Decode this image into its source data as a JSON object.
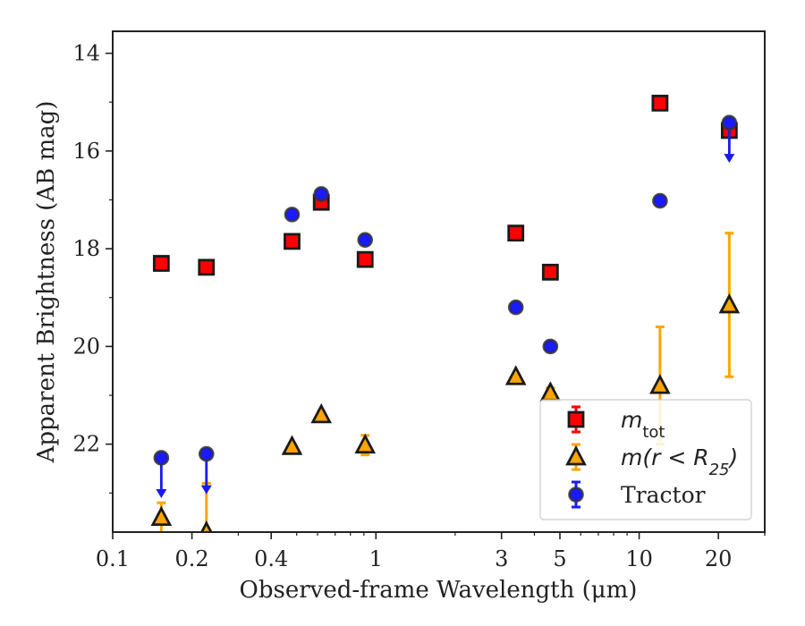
{
  "chart_data": {
    "type": "scatter",
    "title": "",
    "xlabel": "Observed-frame Wavelength (μm)",
    "ylabel": "Apparent Brightness (AB mag)",
    "x_scale": "log",
    "xlim": [
      0.1,
      30
    ],
    "ylim": [
      23.8,
      13.55
    ],
    "y_inverted": true,
    "x_ticks": [
      {
        "value": 0.1,
        "label": "0.1"
      },
      {
        "value": 0.2,
        "label": "0.2"
      },
      {
        "value": 0.4,
        "label": "0.4"
      },
      {
        "value": 1,
        "label": "1"
      },
      {
        "value": 3,
        "label": "3"
      },
      {
        "value": 5,
        "label": "5"
      },
      {
        "value": 10,
        "label": "10"
      },
      {
        "value": 20,
        "label": "20"
      }
    ],
    "y_ticks": [
      {
        "value": 14,
        "label": "14"
      },
      {
        "value": 16,
        "label": "16"
      },
      {
        "value": 18,
        "label": "18"
      },
      {
        "value": 20,
        "label": "20"
      },
      {
        "value": 22,
        "label": "22"
      }
    ],
    "grid": false,
    "legend_position": "lower-right",
    "series": [
      {
        "key": "mtot",
        "name": "m_tot",
        "marker": "square",
        "color": "#ff0000",
        "edge_color": "#1a1a1a",
        "points": [
          {
            "x": 0.153,
            "y": 18.3,
            "yerr": 0.05
          },
          {
            "x": 0.227,
            "y": 18.38,
            "yerr": 0.05
          },
          {
            "x": 0.48,
            "y": 17.85,
            "yerr": 0.05
          },
          {
            "x": 0.62,
            "y": 17.05,
            "yerr": 0.1
          },
          {
            "x": 0.91,
            "y": 18.22,
            "yerr": 0.05
          },
          {
            "x": 3.4,
            "y": 17.68,
            "yerr": 0.05
          },
          {
            "x": 4.6,
            "y": 18.48,
            "yerr": 0.05
          },
          {
            "x": 12.0,
            "y": 15.02,
            "yerr": 0.05
          },
          {
            "x": 22.0,
            "y": 15.58,
            "yerr": 0.05
          }
        ]
      },
      {
        "key": "mr25",
        "name": "m(r < R25)",
        "marker": "triangle",
        "color": "#ffa500",
        "edge_color": "#1a1a1a",
        "points": [
          {
            "x": 0.153,
            "y": 23.5,
            "yerr_low": 0.95,
            "yerr_high": 0.3
          },
          {
            "x": 0.227,
            "y": 23.8,
            "yerr_low": 1.0,
            "yerr_high": 1.0
          },
          {
            "x": 0.48,
            "y": 22.05,
            "yerr": 0.05
          },
          {
            "x": 0.62,
            "y": 21.4,
            "yerr": 0.05
          },
          {
            "x": 0.91,
            "y": 22.02,
            "yerr": 0.2
          },
          {
            "x": 3.4,
            "y": 20.62,
            "yerr": 0.05
          },
          {
            "x": 4.6,
            "y": 20.95,
            "yerr": 0.1
          },
          {
            "x": 12.0,
            "y": 20.8,
            "yerr": 1.2
          },
          {
            "x": 22.0,
            "y": 19.15,
            "yerr": 1.47
          }
        ]
      },
      {
        "key": "tractor",
        "name": "Tractor",
        "marker": "circle",
        "color": "#1a1aff",
        "edge_color": "#333333",
        "points": [
          {
            "x": 0.153,
            "y": 22.28,
            "upper_limit": true
          },
          {
            "x": 0.227,
            "y": 22.2,
            "upper_limit": true
          },
          {
            "x": 0.48,
            "y": 17.3
          },
          {
            "x": 0.62,
            "y": 16.88
          },
          {
            "x": 0.91,
            "y": 17.82
          },
          {
            "x": 3.4,
            "y": 19.2
          },
          {
            "x": 4.6,
            "y": 20.0
          },
          {
            "x": 12.0,
            "y": 17.02
          },
          {
            "x": 22.0,
            "y": 15.42,
            "upper_limit": true
          }
        ]
      }
    ],
    "legend": [
      {
        "key": "mtot",
        "base": "m",
        "sub": "tot",
        "pre": "",
        "post": ""
      },
      {
        "key": "mr25",
        "base": "m(r < R",
        "sub": "25",
        "pre": "",
        "post": ")"
      },
      {
        "key": "tractor",
        "base": "Tractor",
        "sub": "",
        "pre": "",
        "post": ""
      }
    ]
  }
}
